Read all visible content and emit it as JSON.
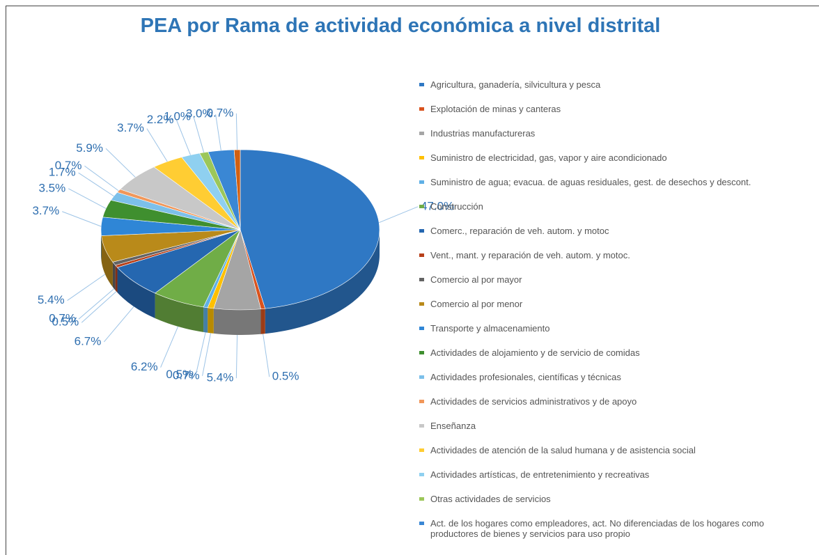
{
  "chart_data": {
    "type": "pie",
    "title": "PEA por Rama de actividad económica a nivel distrital",
    "categories": [
      "Agricultura, ganadería, silvicultura y pesca",
      "Explotación de minas y canteras",
      "Industrias manufactureras",
      "Suministro de electricidad, gas, vapor y aire acondicionado",
      "Suministro de agua; evacua. de aguas residuales, gest. de desechos y descont.",
      "Construcción",
      "Comerc., reparación de veh. autom. y motoc",
      "Vent., mant. y reparación de veh. autom. y motoc.",
      "Comercio al por mayor",
      "Comercio al por menor",
      "Transporte y almacenamiento",
      "Actividades de alojamiento y de servicio de comidas",
      "Actividades profesionales, científicas y técnicas",
      "Actividades de servicios administrativos y de apoyo",
      "Enseñanza",
      "Actividades de atención de la salud humana y de asistencia social",
      "Actividades artísticas, de entretenimiento y recreativas",
      "Otras actividades de servicios",
      "Act. de los hogares como empleadores, act. No diferenciadas de los hogares como productores de bienes y servicios para uso propio",
      null
    ],
    "values": [
      47.0,
      0.5,
      5.4,
      0.7,
      0.5,
      6.2,
      6.7,
      0.5,
      0.7,
      5.4,
      3.7,
      3.5,
      1.7,
      0.7,
      5.9,
      3.7,
      2.2,
      1.0,
      3.0,
      0.7
    ],
    "value_labels": [
      "47.0%",
      "0.5%",
      "5.4%",
      "0.7%",
      "0.5%",
      "6.2%",
      "6.7%",
      "0.5%",
      "0.7%",
      "5.4%",
      "3.7%",
      "3.5%",
      "1.7%",
      "0.7%",
      "5.9%",
      "3.7%",
      "2.2%",
      "1.0%",
      "3.0%",
      "0.7%"
    ],
    "colors": [
      "#2f78c4",
      "#d9531e",
      "#a5a5a5",
      "#ffc000",
      "#5fb0e6",
      "#70ad47",
      "#2567b0",
      "#b8401a",
      "#636363",
      "#b98a1a",
      "#2f86d6",
      "#3f8f2f",
      "#7cc0ea",
      "#f1975a",
      "#c8c8c8",
      "#ffcd33",
      "#8fd0f0",
      "#9cc75a",
      "#3a87d4",
      "#d26012"
    ]
  }
}
